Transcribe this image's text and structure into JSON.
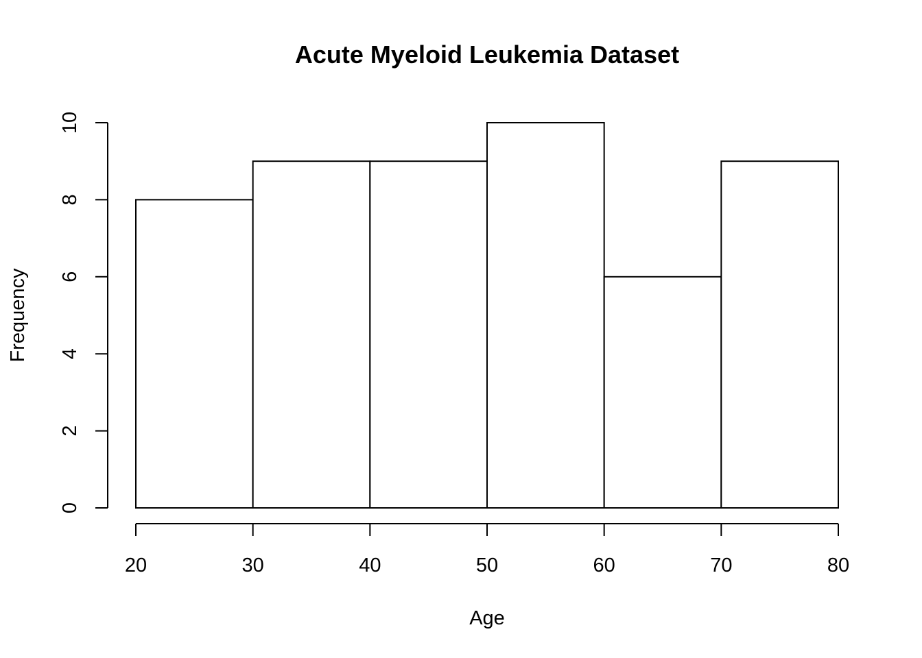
{
  "chart_data": {
    "type": "bar",
    "subtype": "histogram",
    "title": "Acute Myeloid Leukemia Dataset",
    "xlabel": "Age",
    "ylabel": "Frequency",
    "bins": [
      {
        "start": 20,
        "end": 30,
        "count": 8
      },
      {
        "start": 30,
        "end": 40,
        "count": 9
      },
      {
        "start": 40,
        "end": 50,
        "count": 9
      },
      {
        "start": 50,
        "end": 60,
        "count": 10
      },
      {
        "start": 60,
        "end": 70,
        "count": 6
      },
      {
        "start": 70,
        "end": 80,
        "count": 9
      }
    ],
    "xlim": [
      20,
      80
    ],
    "ylim": [
      0,
      10
    ],
    "x_ticks": [
      "20",
      "30",
      "40",
      "50",
      "60",
      "70",
      "80"
    ],
    "y_ticks": [
      "0",
      "2",
      "4",
      "6",
      "8",
      "10"
    ],
    "grid": false,
    "legend": "none",
    "colors": {
      "bar_fill": "#ffffff",
      "bar_stroke": "#000000"
    }
  }
}
